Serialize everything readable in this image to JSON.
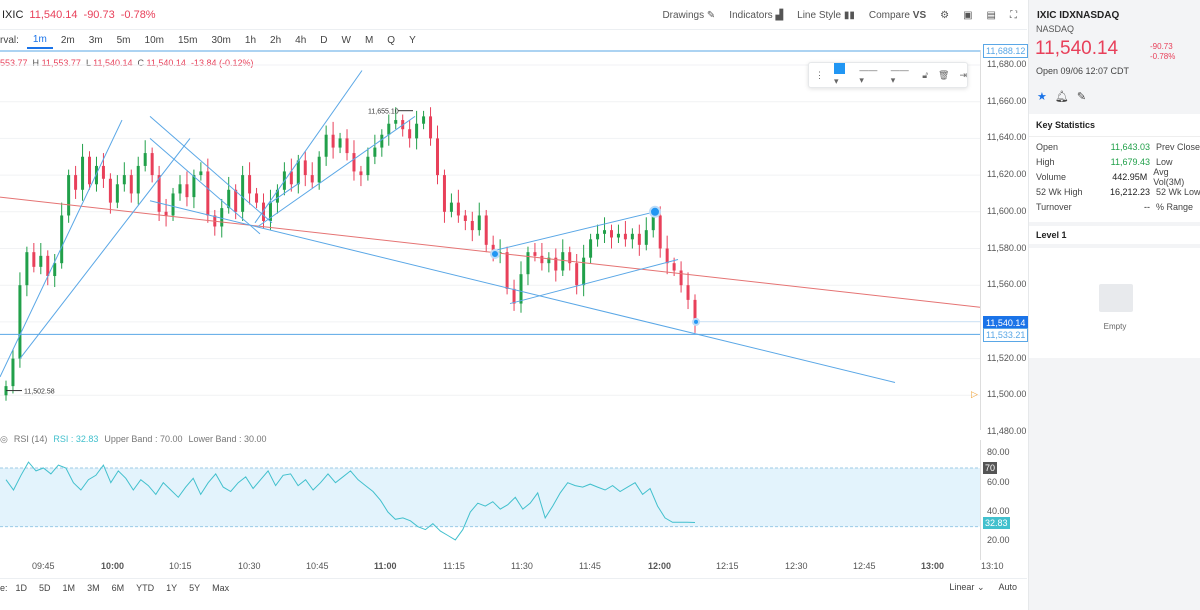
{
  "header": {
    "symbol": "IXIC",
    "last": "11,540.14",
    "change": "-90.73",
    "change_pct": "-0.78%",
    "drawings_label": "Drawings",
    "indicators_label": "Indicators",
    "line_style_label": "Line Style",
    "compare_label": "Compare"
  },
  "intervals": {
    "label": "rval:",
    "items": [
      "1m",
      "2m",
      "3m",
      "5m",
      "10m",
      "15m",
      "30m",
      "1h",
      "2h",
      "4h",
      "D",
      "W",
      "M",
      "Q",
      "Y"
    ],
    "active": "1m"
  },
  "ohlc": {
    "open": "553.77",
    "high_key": "H",
    "high": "11,553.77",
    "low_key": "L",
    "low": "11,540.14",
    "close_key": "C",
    "close": "11,540.14",
    "change": "-13.84 (-0.12%)"
  },
  "chart_data": {
    "type": "candlestick",
    "price_ticks": [
      "11,680.00",
      "11,660.00",
      "11,640.00",
      "11,620.00",
      "11,600.00",
      "11,580.00",
      "11,560.00",
      "11,540.00",
      "11,520.00",
      "11,500.00",
      "11,480.00"
    ],
    "time_labels": [
      "09:45",
      "10:00",
      "10:15",
      "10:30",
      "10:45",
      "11:00",
      "11:15",
      "11:30",
      "11:45",
      "12:00",
      "12:15",
      "12:30",
      "12:45",
      "13:00",
      "13:10"
    ],
    "annotations": {
      "high_label": "11,655.10",
      "low_label": "11,502.58",
      "current_price": "11,540.14",
      "line_price": "11,533.21",
      "top_line_price": "11,688.12"
    },
    "closes": [
      11505,
      11520,
      11560,
      11578,
      11570,
      11576,
      11565,
      11572,
      11598,
      11620,
      11612,
      11630,
      11615,
      11625,
      11618,
      11605,
      11615,
      11620,
      11610,
      11625,
      11632,
      11620,
      11600,
      11598,
      11610,
      11615,
      11608,
      11620,
      11622,
      11598,
      11592,
      11602,
      11612,
      11600,
      11620,
      11610,
      11605,
      11595,
      11605,
      11612,
      11622,
      11615,
      11628,
      11620,
      11616,
      11630,
      11642,
      11635,
      11640,
      11632,
      11622,
      11620,
      11630,
      11635,
      11642,
      11648,
      11650,
      11645,
      11640,
      11648,
      11652,
      11640,
      11620,
      11600,
      11605,
      11598,
      11595,
      11590,
      11598,
      11582,
      11578,
      11578,
      11558,
      11550,
      11566,
      11578,
      11576,
      11572,
      11575,
      11568,
      11578,
      11572,
      11560,
      11575,
      11585,
      11588,
      11590,
      11586,
      11588,
      11585,
      11588,
      11582,
      11590,
      11598,
      11580,
      11572,
      11568,
      11560,
      11552,
      11540
    ],
    "rsi": {
      "label": "RSI (14)",
      "value": "RSI : 32.83",
      "upper_band": "Upper Band : 70.00",
      "lower_band": "Lower Band : 30.00",
      "axis_ticks": [
        "80.00",
        "60.00",
        "40.00",
        "20.00"
      ],
      "upper_badge": "70",
      "value_badge": "32.83",
      "values": [
        62,
        55,
        65,
        74,
        68,
        70,
        66,
        72,
        70,
        60,
        55,
        62,
        65,
        72,
        60,
        68,
        63,
        55,
        62,
        58,
        52,
        60,
        55,
        50,
        57,
        63,
        52,
        60,
        66,
        57,
        54,
        60,
        64,
        56,
        62,
        68,
        58,
        65,
        66,
        58,
        62,
        55,
        60,
        66,
        60,
        64,
        68,
        62,
        58,
        54,
        48,
        40,
        35,
        36,
        34,
        30,
        28,
        32,
        27,
        24,
        21,
        28,
        40,
        46,
        44,
        47,
        42,
        45,
        50,
        42,
        46,
        53,
        36,
        44,
        53,
        60,
        58,
        57,
        59,
        57,
        55,
        58,
        54,
        57,
        60,
        52,
        56,
        44,
        36,
        33,
        33,
        33,
        32.83
      ]
    }
  },
  "bottom": {
    "ranges": [
      "1D",
      "5D",
      "1M",
      "3M",
      "6M",
      "YTD",
      "1Y",
      "5Y",
      "Max"
    ],
    "prefix": "e:",
    "scale_label": "Linear",
    "auto_label": "Auto"
  },
  "panel": {
    "title": "IXIC IDXNASDAQ",
    "exchange": "NASDAQ",
    "price": "11,540.14",
    "change": "-90.73",
    "change_pct": "-0.78%",
    "open_time": "Open 09/06 12:07 CDT",
    "key_stats_title": "Key Statistics",
    "stats": [
      {
        "label": "Open",
        "value": "11,643.03",
        "label2": "Prev Close",
        "color": "green"
      },
      {
        "label": "High",
        "value": "11,679.43",
        "label2": "Low",
        "color": "green"
      },
      {
        "label": "Volume",
        "value": "442.95M",
        "label2": "Avg Vol(3M)",
        "color": "dark"
      },
      {
        "label": "52 Wk High",
        "value": "16,212.23",
        "label2": "52 Wk Low",
        "color": "dark"
      },
      {
        "label": "Turnover",
        "value": "--",
        "label2": "% Range",
        "color": "dark"
      }
    ],
    "level1_title": "Level 1",
    "empty_text": "Empty"
  },
  "colors": {
    "accent": "#1a73e8",
    "down": "#e8405a",
    "up": "#21a04a",
    "trendline": "#5aa7e6",
    "red_line": "#e57373",
    "rsi": "#42c0cd"
  }
}
